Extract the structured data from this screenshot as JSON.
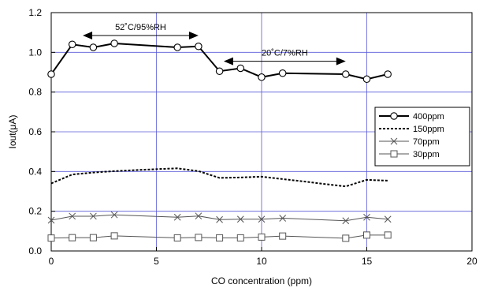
{
  "chart_data": {
    "type": "line",
    "title": "",
    "xlabel": "CO concentration (ppm)",
    "ylabel": "Iout(μA)",
    "xlim": [
      0,
      20
    ],
    "ylim": [
      0,
      1.2
    ],
    "xticks": [
      0,
      5,
      10,
      15,
      20
    ],
    "yticks": [
      0.0,
      0.2,
      0.4,
      0.6,
      0.8,
      1.0,
      1.2
    ],
    "xtick_labels": [
      "0",
      "5",
      "10",
      "15",
      "20"
    ],
    "ytick_labels": [
      "0.0",
      "0.2",
      "0.4",
      "0.6",
      "0.8",
      "1.0",
      "1.2"
    ],
    "grid": true,
    "legend_position": "right",
    "series": [
      {
        "name": "400ppm",
        "marker": "circle",
        "line": "solid-thick",
        "color": "#000000",
        "x": [
          0,
          1,
          2,
          3,
          6,
          7,
          8,
          9,
          10,
          11,
          14,
          15,
          16
        ],
        "y": [
          0.89,
          1.04,
          1.025,
          1.045,
          1.025,
          1.03,
          0.905,
          0.92,
          0.875,
          0.895,
          0.89,
          0.865,
          0.89
        ]
      },
      {
        "name": "150ppm",
        "marker": "none",
        "line": "dotted",
        "color": "#000000",
        "x": [
          0,
          1,
          2,
          3,
          4,
          5,
          6,
          7,
          8,
          9,
          10,
          11,
          12,
          13,
          14,
          15,
          16
        ],
        "y": [
          0.34,
          0.385,
          0.395,
          0.402,
          0.407,
          0.412,
          0.416,
          0.402,
          0.368,
          0.37,
          0.374,
          0.362,
          0.35,
          0.337,
          0.325,
          0.358,
          0.354
        ]
      },
      {
        "name": "70ppm",
        "marker": "x",
        "line": "solid-thin",
        "color": "#555555",
        "x": [
          0,
          1,
          2,
          3,
          6,
          7,
          8,
          9,
          10,
          11,
          14,
          15,
          16
        ],
        "y": [
          0.155,
          0.175,
          0.175,
          0.182,
          0.17,
          0.176,
          0.158,
          0.16,
          0.16,
          0.165,
          0.152,
          0.17,
          0.16
        ]
      },
      {
        "name": "30ppm",
        "marker": "square",
        "line": "solid-thin",
        "color": "#555555",
        "x": [
          0,
          1,
          2,
          3,
          6,
          7,
          8,
          9,
          10,
          11,
          14,
          15,
          16
        ],
        "y": [
          0.065,
          0.067,
          0.067,
          0.076,
          0.066,
          0.068,
          0.066,
          0.066,
          0.07,
          0.075,
          0.064,
          0.08,
          0.08
        ]
      }
    ],
    "annotations": [
      {
        "text": "52˚C/95%RH",
        "x_from": 1.5,
        "x_to": 7.0,
        "y": 1.085
      },
      {
        "text": "20˚C/7%RH",
        "x_from": 8.2,
        "x_to": 14.0,
        "y": 0.955
      }
    ],
    "colors": {
      "grid": "#5a5ad8",
      "axis": "#000000",
      "marker_gray": "#555555"
    }
  }
}
